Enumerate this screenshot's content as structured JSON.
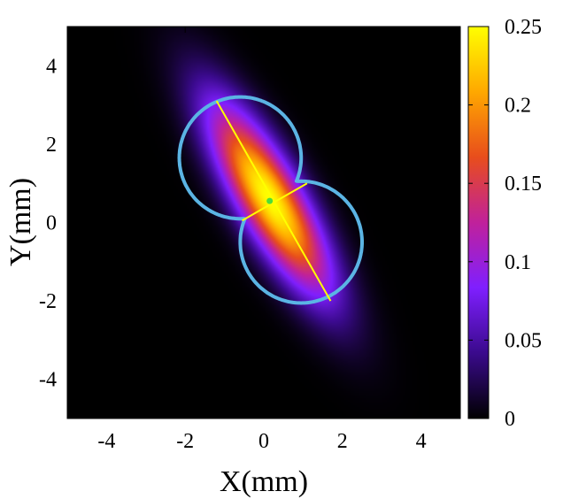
{
  "chart_data": {
    "type": "heatmap",
    "title": "",
    "xlabel": "X(mm)",
    "ylabel": "Y(mm)",
    "xlim": [
      -5,
      5
    ],
    "ylim": [
      -5,
      5
    ],
    "x_ticks": [
      -4,
      -2,
      0,
      2,
      4
    ],
    "y_ticks": [
      -4,
      -2,
      0,
      2,
      4
    ],
    "grid": false,
    "colorbar": {
      "min": 0,
      "max": 0.25,
      "ticks": [
        0,
        0.05,
        0.1,
        0.15,
        0.2,
        0.25
      ],
      "colormap": [
        "#000000",
        "#3a0a8c",
        "#7f1fff",
        "#c0219b",
        "#e84d1c",
        "#ffa800",
        "#ffff00"
      ]
    },
    "field": {
      "peak": 0.25,
      "center": [
        0.15,
        0.6
      ],
      "major_axis_angle_deg": -60,
      "sigma_major_mm": 1.9,
      "sigma_minor_mm": 0.55
    },
    "lobe_outline": {
      "color": "#5bb4e4",
      "lobes": [
        {
          "center": [
            -0.6,
            1.65
          ],
          "radius": 1.55
        },
        {
          "center": [
            0.95,
            -0.5
          ],
          "radius": 1.55
        }
      ]
    },
    "major_line": {
      "from": [
        -1.2,
        3.1
      ],
      "to": [
        1.7,
        -2.0
      ],
      "color": "#ffff00"
    },
    "minor_line": {
      "from": [
        -0.55,
        0.05
      ],
      "to": [
        1.1,
        1.0
      ],
      "color": "#ffff00"
    },
    "center_marker": {
      "x": 0.15,
      "y": 0.55,
      "color": "#4ddc3a"
    }
  }
}
